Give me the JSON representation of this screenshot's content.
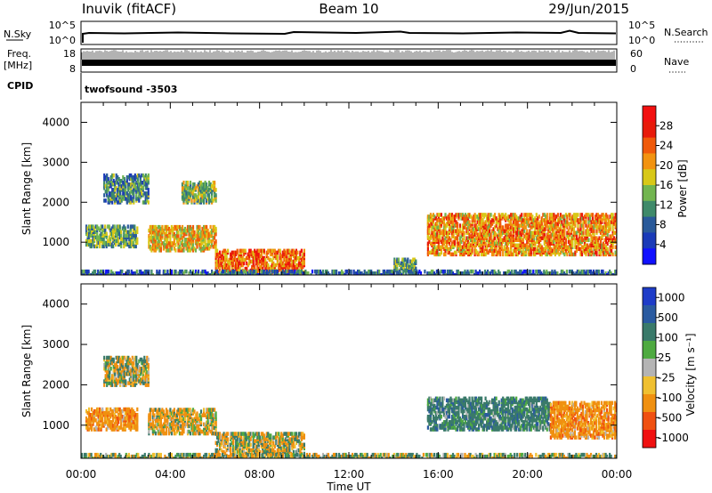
{
  "header": {
    "station": "Inuvik (fitACF)",
    "beam": "Beam 10",
    "date": "29/Jun/2015"
  },
  "noise_panel": {
    "left_label": "N.Sky",
    "right_label": "N.Search",
    "left_ticks": [
      "10^5",
      "10^0"
    ],
    "right_ticks": [
      "10^5",
      "10^0"
    ]
  },
  "freq_panel": {
    "left_label_1": "Freq.",
    "left_label_2": "[MHz]",
    "right_label": "Nave",
    "left_ticks": [
      "18",
      "8"
    ],
    "right_ticks": [
      "60",
      "0"
    ]
  },
  "cpid_panel": {
    "label": "CPID",
    "program": "twofsound -3503"
  },
  "chart_data": [
    {
      "type": "heatmap",
      "title": "",
      "quantity": "Power",
      "xlabel": "Time UT",
      "ylabel": "Slant Range [km]",
      "x_ticks": [
        "00:00",
        "04:00",
        "08:00",
        "12:00",
        "16:00",
        "20:00",
        "00:00"
      ],
      "xlim_hours": [
        0,
        24
      ],
      "y_ticks": [
        1000,
        2000,
        3000,
        4000
      ],
      "ylim_km": [
        180,
        4500
      ],
      "colorbar": {
        "label": "Power [dB]",
        "ticks": [
          "4",
          "8",
          "12",
          "16",
          "20",
          "24",
          "28"
        ],
        "colors": [
          "#1010ff",
          "#1a3ab8",
          "#2a5a9a",
          "#3f8a6a",
          "#72b550",
          "#d8c818",
          "#f29310",
          "#f05a0a",
          "#e81a0a",
          "#f21010"
        ]
      },
      "echo_regions": [
        {
          "t": [
            0.2,
            2.5
          ],
          "r": [
            900,
            1400
          ],
          "power_db": 12
        },
        {
          "t": [
            1.0,
            3.0
          ],
          "r": [
            2000,
            2700
          ],
          "power_db": 10
        },
        {
          "t": [
            3.0,
            6.0
          ],
          "r": [
            800,
            1400
          ],
          "power_db": 18
        },
        {
          "t": [
            4.5,
            6.0
          ],
          "r": [
            2000,
            2500
          ],
          "power_db": 14
        },
        {
          "t": [
            6.0,
            10.0
          ],
          "r": [
            250,
            800
          ],
          "power_db": 22
        },
        {
          "t": [
            14.0,
            15.0
          ],
          "r": [
            300,
            600
          ],
          "power_db": 12
        },
        {
          "t": [
            15.5,
            24.0
          ],
          "r": [
            700,
            1700
          ],
          "power_db": 20
        },
        {
          "t": [
            0.0,
            24.0
          ],
          "r": [
            180,
            300
          ],
          "power_db": 8
        }
      ]
    },
    {
      "type": "heatmap",
      "title": "",
      "quantity": "Velocity",
      "xlabel": "Time UT",
      "ylabel": "Slant Range [km]",
      "x_ticks": [
        "00:00",
        "04:00",
        "08:00",
        "12:00",
        "16:00",
        "20:00",
        "00:00"
      ],
      "xlim_hours": [
        0,
        24
      ],
      "y_ticks": [
        1000,
        2000,
        3000,
        4000
      ],
      "ylim_km": [
        180,
        4500
      ],
      "colorbar": {
        "label": "Velocity [m s⁻¹]",
        "ticks": [
          "1000",
          "500",
          "100",
          "25",
          "-25",
          "-100",
          "-500",
          "-1000"
        ],
        "colors": [
          "#1e3cc8",
          "#2a5aa0",
          "#3a7a6a",
          "#4eaa40",
          "#b4b4b4",
          "#f0c030",
          "#f09010",
          "#f05010",
          "#f01010"
        ]
      },
      "echo_regions": [
        {
          "t": [
            0.2,
            2.5
          ],
          "r": [
            900,
            1400
          ],
          "velocity": -300
        },
        {
          "t": [
            1.0,
            3.0
          ],
          "r": [
            2000,
            2700
          ],
          "velocity": 0
        },
        {
          "t": [
            3.0,
            6.0
          ],
          "r": [
            800,
            1400
          ],
          "velocity": -100
        },
        {
          "t": [
            6.0,
            10.0
          ],
          "r": [
            250,
            800
          ],
          "velocity": 0
        },
        {
          "t": [
            15.5,
            21.0
          ],
          "r": [
            900,
            1700
          ],
          "velocity": 300
        },
        {
          "t": [
            21.0,
            24.0
          ],
          "r": [
            700,
            1600
          ],
          "velocity": -300
        },
        {
          "t": [
            0.0,
            24.0
          ],
          "r": [
            180,
            300
          ],
          "velocity": 50
        }
      ]
    }
  ]
}
